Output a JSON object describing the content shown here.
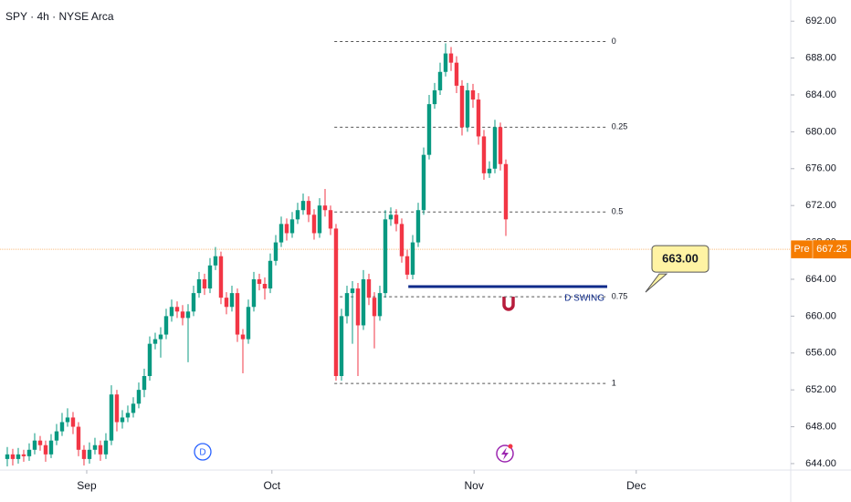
{
  "chart_data": {
    "type": "candlestick",
    "title": "SPY · 4h · NYSE Arca",
    "xlim": [
      -1.33,
      143
    ],
    "ylim": [
      643.3,
      694.3
    ],
    "xticks": [
      {
        "value": 14.5,
        "label": "Sep"
      },
      {
        "value": 48.3,
        "label": "Oct"
      },
      {
        "value": 85.2,
        "label": "Nov"
      },
      {
        "value": 114.8,
        "label": "Dec"
      }
    ],
    "yticks": [
      {
        "value": 644,
        "label": "644.00"
      },
      {
        "value": 648,
        "label": "648.00"
      },
      {
        "value": 652,
        "label": "652.00"
      },
      {
        "value": 656,
        "label": "656.00"
      },
      {
        "value": 660,
        "label": "660.00"
      },
      {
        "value": 664,
        "label": "664.00"
      },
      {
        "value": 668,
        "label": "668.00"
      },
      {
        "value": 672,
        "label": "672.00"
      },
      {
        "value": 676,
        "label": "676.00"
      },
      {
        "value": 680,
        "label": "680.00"
      },
      {
        "value": 684,
        "label": "684.00"
      },
      {
        "value": 688,
        "label": "688.00"
      },
      {
        "value": 692,
        "label": "692.00"
      }
    ],
    "up_color": "#089981",
    "down_color": "#f23645",
    "open": [
      644.5,
      645,
      644.5,
      645,
      644.8,
      645.5,
      646.5,
      646,
      645,
      646.5,
      647.5,
      648.5,
      649,
      648,
      645.5,
      644.5,
      645.5,
      646,
      645,
      646.5,
      651.5,
      648.5,
      649,
      649.5,
      650.5,
      652,
      653.5,
      657,
      657.5,
      658,
      660,
      661,
      660.5,
      659.8,
      660.5,
      662.5,
      664,
      663,
      665.5,
      666.5,
      662,
      661,
      662.5,
      658,
      657.5,
      661,
      664,
      663.5,
      663,
      666,
      668,
      670,
      669,
      670.5,
      671.5,
      672.5,
      671,
      669,
      672,
      671.5,
      669.5,
      653.5,
      660,
      662.5,
      663,
      659,
      664,
      662,
      660,
      662.5,
      670.5,
      671,
      670,
      666.5,
      664.5,
      668,
      671.5,
      677.5,
      683,
      684.5,
      686.5,
      688.5,
      687.5,
      685,
      680.5,
      684.5,
      683.5,
      679.5,
      675.5,
      676,
      680.5,
      676.5
    ],
    "high": [
      645.8,
      645.6,
      645.7,
      645.5,
      646.2,
      647.3,
      647,
      646.5,
      647.2,
      648.3,
      649.5,
      650,
      649.6,
      648.5,
      646,
      646.3,
      646.8,
      646.5,
      647.3,
      652.5,
      652,
      649.8,
      650.3,
      651.2,
      652.8,
      654.3,
      657.8,
      658.2,
      658.8,
      660.8,
      661.8,
      661.6,
      661.2,
      661.3,
      663.3,
      664.8,
      664.6,
      666.3,
      667.5,
      667,
      662.6,
      663.3,
      663,
      658.6,
      661.8,
      664.8,
      664.6,
      664.2,
      666.8,
      668.8,
      670.8,
      670.6,
      671.3,
      672.3,
      673.3,
      673,
      671.6,
      672.8,
      673.8,
      672,
      670,
      660.8,
      663.3,
      663.8,
      663.6,
      665,
      664.6,
      662.6,
      663.3,
      671.5,
      671.8,
      671.6,
      670.6,
      667.2,
      668.8,
      672.3,
      678.3,
      684,
      685.3,
      687.5,
      689.6,
      689.2,
      688.2,
      685.6,
      685.3,
      685.2,
      684.2,
      680.2,
      676.8,
      681.3,
      681,
      677
    ],
    "low": [
      643.7,
      643.8,
      644,
      644.2,
      644.3,
      645,
      645.4,
      644.2,
      644.6,
      646,
      647,
      648,
      647.2,
      644.8,
      643.8,
      644,
      645,
      644.3,
      644.5,
      646,
      647.5,
      647.8,
      648.5,
      649,
      650,
      651.2,
      653,
      656.4,
      655.5,
      657.5,
      659.4,
      659.8,
      659,
      655,
      660,
      662,
      662.3,
      662.5,
      665,
      661.3,
      660.2,
      660.5,
      657.2,
      653.8,
      657,
      660.5,
      662.8,
      661.8,
      662.5,
      665.5,
      667.5,
      668.2,
      668.5,
      670,
      671,
      670.2,
      668.3,
      668.5,
      670.8,
      668.8,
      653,
      653,
      659.2,
      657,
      653.5,
      658.5,
      661.2,
      656.5,
      659.5,
      662,
      669.8,
      669.2,
      665.8,
      664,
      664,
      667.5,
      671,
      677,
      682.5,
      684,
      686,
      686.6,
      684.2,
      679.6,
      680,
      682.6,
      678.6,
      674.8,
      675,
      675.5,
      675.8,
      668.7
    ],
    "close": [
      645,
      644.5,
      645,
      644.8,
      645.5,
      646.5,
      646,
      645,
      646.5,
      647.5,
      648.5,
      649,
      648,
      645.5,
      644.5,
      645.5,
      646,
      645,
      646.5,
      651.5,
      648.5,
      649,
      649.5,
      650.5,
      652,
      653.5,
      657,
      657.5,
      658,
      660,
      661,
      660.5,
      659.8,
      660.5,
      662.5,
      664,
      663,
      665.5,
      666.5,
      662,
      661,
      662.5,
      658,
      657.5,
      661,
      664,
      663.5,
      663,
      666,
      668,
      670,
      669,
      670.5,
      671.5,
      672.5,
      671,
      669,
      672,
      671.5,
      669.5,
      653.5,
      660,
      662.5,
      663,
      659,
      664,
      662,
      660,
      662.5,
      670.5,
      671,
      670,
      666.5,
      664.5,
      668,
      671.5,
      677.5,
      683,
      684.5,
      686.5,
      688.5,
      687.5,
      685,
      680.5,
      684.5,
      683.5,
      679.5,
      675.5,
      676,
      680.5,
      676.5,
      670.5
    ],
    "fib": {
      "x": [
        59.7,
        109.3
      ],
      "levels": [
        {
          "level": 0,
          "price": 689.8
        },
        {
          "level": 0.25,
          "price": 680.5
        },
        {
          "level": 0.5,
          "price": 671.3
        },
        {
          "level": 0.75,
          "price": 662.1
        },
        {
          "level": 1,
          "price": 652.7
        }
      ]
    },
    "swing": {
      "label": "D SWING",
      "price": 663.2,
      "x": [
        73.2,
        109.5
      ],
      "color": "#0d2a8a"
    },
    "callout": {
      "value": 663,
      "label": "663.00"
    },
    "pre": {
      "label": "Pre",
      "value": 667.25,
      "color": "#f57c00"
    }
  }
}
